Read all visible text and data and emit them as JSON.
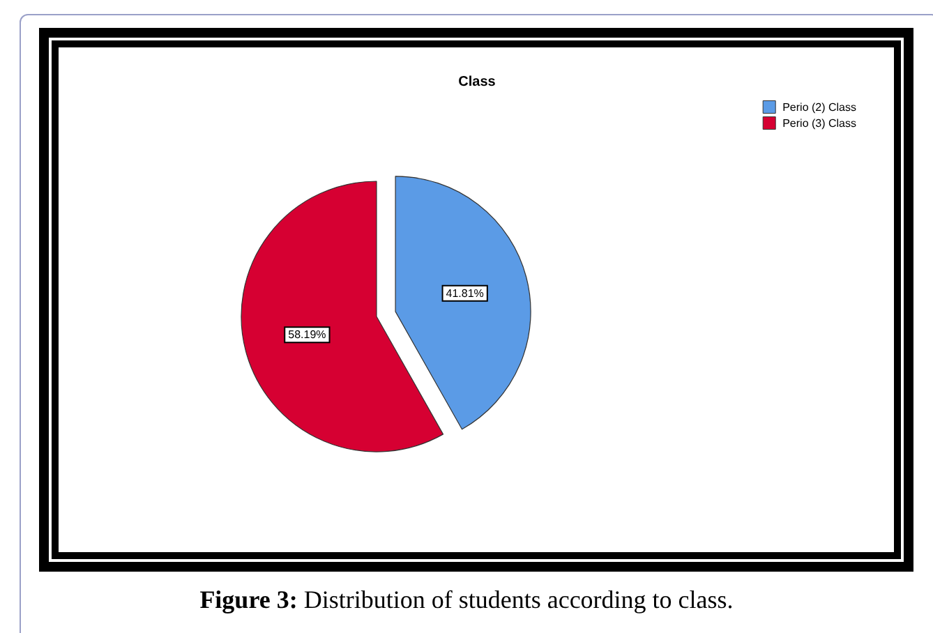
{
  "chart_data": {
    "type": "pie",
    "title": "Class",
    "categories": [
      "Perio (2) Class",
      "Perio (3) Class"
    ],
    "values": [
      41.81,
      58.19
    ],
    "colors": [
      "#5b9be6",
      "#d60032"
    ],
    "value_labels": [
      "41.81%",
      "58.19%"
    ],
    "legend": "top right",
    "annotations": [
      "Figure 3: Distribution of students according to class."
    ]
  }
}
